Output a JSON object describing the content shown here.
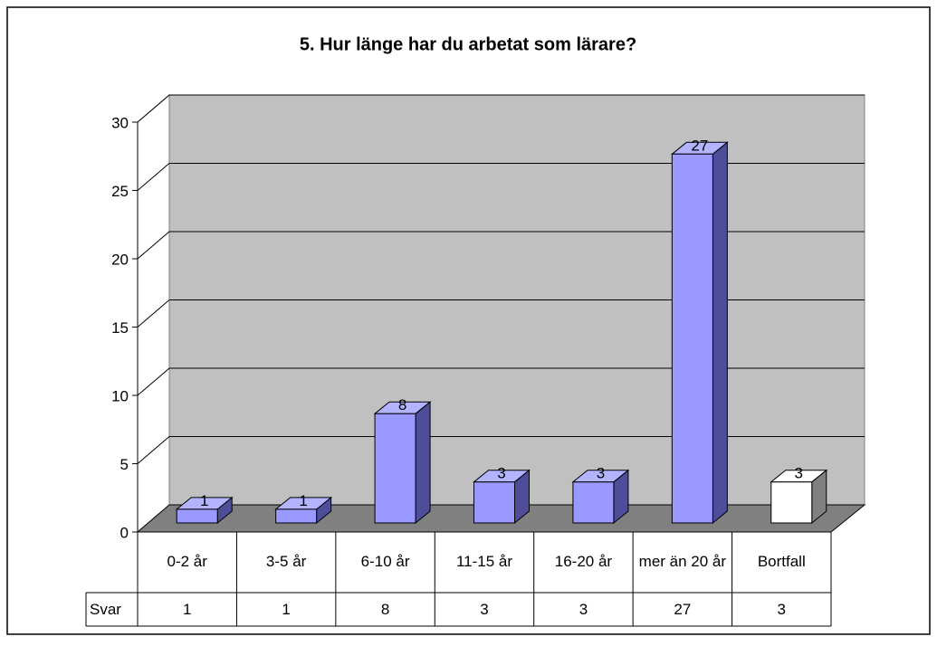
{
  "chart_data": {
    "type": "bar3d",
    "title": "5. Hur länge har du arbetat som lärare?",
    "categories": [
      "0-2 år",
      "3-5 år",
      "6-10 år",
      "11-15 år",
      "16-20 år",
      "mer än 20 år",
      "Bortfall"
    ],
    "series": [
      {
        "name": "Svar",
        "color": "#9999ff",
        "values": [
          1,
          1,
          8,
          3,
          3,
          27,
          3
        ]
      }
    ],
    "point_colors": [
      "#9999ff",
      "#9999ff",
      "#9999ff",
      "#9999ff",
      "#9999ff",
      "#9999ff",
      "#ffffff"
    ],
    "ylim": [
      0,
      30
    ],
    "yticks": [
      0,
      5,
      10,
      15,
      20,
      25,
      30
    ],
    "grid": true,
    "data_table": true
  }
}
